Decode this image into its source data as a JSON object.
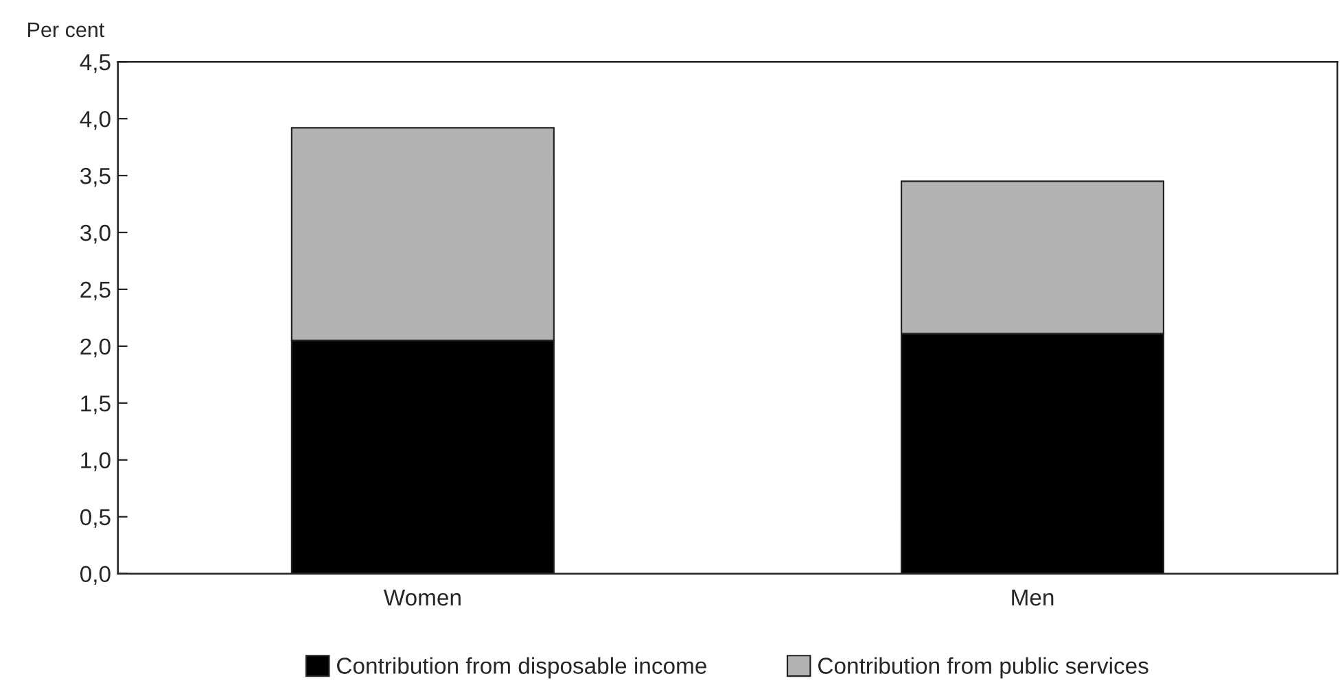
{
  "chart_data": {
    "type": "bar",
    "stacked": true,
    "ylabel": "Per cent",
    "categories": [
      "Women",
      "Men"
    ],
    "series": [
      {
        "name": "Contribution from disposable income",
        "color": "#000000",
        "values": [
          2.05,
          2.11
        ]
      },
      {
        "name": "Contribution from public services",
        "color": "#b3b3b3",
        "values": [
          1.87,
          1.34
        ]
      }
    ],
    "ylim": [
      0,
      4.5
    ],
    "yticks": [
      {
        "value": 0,
        "label": "0,0"
      },
      {
        "value": 0.5,
        "label": "0,5"
      },
      {
        "value": 1,
        "label": "1,0"
      },
      {
        "value": 1.5,
        "label": "1,5"
      },
      {
        "value": 2,
        "label": "2,0"
      },
      {
        "value": 2.5,
        "label": "2,5"
      },
      {
        "value": 3,
        "label": "3,0"
      },
      {
        "value": 3.5,
        "label": "3,5"
      },
      {
        "value": 4,
        "label": "4,0"
      },
      {
        "value": 4.5,
        "label": "4,5"
      }
    ],
    "grid": false,
    "legend": "bottom"
  }
}
